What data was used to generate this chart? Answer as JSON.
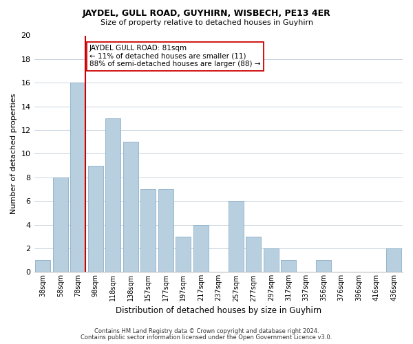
{
  "title": "JAYDEL, GULL ROAD, GUYHIRN, WISBECH, PE13 4ER",
  "subtitle": "Size of property relative to detached houses in Guyhirn",
  "xlabel": "Distribution of detached houses by size in Guyhirn",
  "ylabel": "Number of detached properties",
  "footer_line1": "Contains HM Land Registry data © Crown copyright and database right 2024.",
  "footer_line2": "Contains public sector information licensed under the Open Government Licence v3.0.",
  "bar_labels": [
    "38sqm",
    "58sqm",
    "78sqm",
    "98sqm",
    "118sqm",
    "138sqm",
    "157sqm",
    "177sqm",
    "197sqm",
    "217sqm",
    "237sqm",
    "257sqm",
    "277sqm",
    "297sqm",
    "317sqm",
    "337sqm",
    "356sqm",
    "376sqm",
    "396sqm",
    "416sqm",
    "436sqm"
  ],
  "bar_values": [
    1,
    8,
    16,
    9,
    13,
    11,
    7,
    7,
    3,
    4,
    0,
    6,
    3,
    2,
    1,
    0,
    1,
    0,
    0,
    0,
    2
  ],
  "bar_color": "#b8cfe0",
  "bar_edge_color": "#8aafc8",
  "ylim": [
    0,
    20
  ],
  "yticks": [
    0,
    2,
    4,
    6,
    8,
    10,
    12,
    14,
    16,
    18,
    20
  ],
  "property_line_index": 2,
  "property_line_color": "#cc0000",
  "annotation_line1": "JAYDEL GULL ROAD: 81sqm",
  "annotation_line2": "← 11% of detached houses are smaller (11)",
  "annotation_line3": "88% of semi-detached houses are larger (88) →",
  "annotation_box_color": "#ffffff",
  "annotation_box_edge": "#cc0000",
  "background_color": "#ffffff",
  "grid_color": "#c8d4e0"
}
